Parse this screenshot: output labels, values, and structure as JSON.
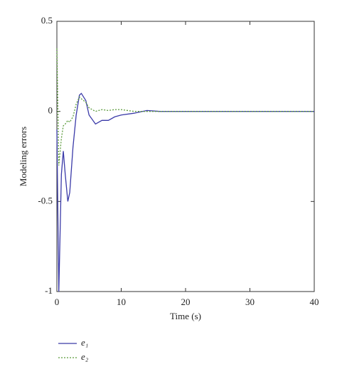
{
  "chart_data": {
    "type": "line",
    "xlabel": "Time (s)",
    "ylabel": "Modeling errors",
    "x": [
      0,
      0.3,
      0.7,
      1,
      1.3,
      1.7,
      2,
      2.5,
      3,
      3.5,
      3.8,
      4.5,
      5,
      6,
      7,
      8,
      9,
      10,
      12,
      14,
      16,
      20,
      25,
      30,
      35,
      40
    ],
    "series": [
      {
        "name": "e₁",
        "color": "#3a3aa8",
        "dash": "solid",
        "values": [
          -0.1,
          -1,
          -0.35,
          -0.22,
          -0.35,
          -0.5,
          -0.45,
          -0.2,
          -0.02,
          0.09,
          0.1,
          0.06,
          -0.02,
          -0.07,
          -0.05,
          -0.05,
          -0.03,
          -0.02,
          -0.01,
          0.005,
          0,
          0,
          0,
          0,
          0,
          0
        ]
      },
      {
        "name": "e₂",
        "color": "#5a9a3a",
        "dash": "dotted",
        "values": [
          0.35,
          -0.3,
          -0.15,
          -0.08,
          -0.07,
          -0.05,
          -0.06,
          -0.03,
          0.04,
          0.08,
          0.07,
          0.05,
          0.02,
          0,
          0.01,
          0.005,
          0.01,
          0.01,
          0,
          0,
          0,
          0,
          0,
          0,
          0,
          0
        ]
      }
    ],
    "xlim": [
      0,
      40
    ],
    "xticks": [
      0,
      10,
      20,
      30,
      40
    ],
    "ylim": [
      -1,
      0.5
    ],
    "yticks": [
      -1,
      -0.5,
      0,
      0.5
    ]
  }
}
